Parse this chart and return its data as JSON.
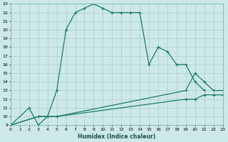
{
  "xlabel": "Humidex (Indice chaleur)",
  "bg_color": "#cde8e8",
  "grid_color": "#aacccc",
  "line_color": "#1a7a6e",
  "xlim": [
    0,
    23
  ],
  "ylim": [
    9,
    23
  ],
  "xticks": [
    0,
    1,
    2,
    3,
    4,
    5,
    6,
    7,
    8,
    9,
    10,
    11,
    12,
    13,
    14,
    15,
    16,
    17,
    18,
    19,
    20,
    21,
    22,
    23
  ],
  "yticks": [
    9,
    10,
    11,
    12,
    13,
    14,
    15,
    16,
    17,
    18,
    19,
    20,
    21,
    22,
    23
  ],
  "line1_x": [
    0,
    2,
    3,
    4,
    5,
    6,
    7,
    8,
    9,
    10,
    11,
    12,
    13,
    14,
    15,
    16,
    17,
    18,
    19,
    20,
    21
  ],
  "line1_y": [
    9,
    11,
    9,
    10,
    13,
    20,
    22,
    22.5,
    23,
    22.5,
    22,
    22,
    22,
    22,
    16,
    18,
    17.5,
    16,
    16,
    14,
    13
  ],
  "line2_x": [
    0,
    3,
    5,
    19,
    20,
    21,
    22,
    23
  ],
  "line2_y": [
    9,
    10,
    10,
    13,
    15,
    14,
    13,
    13
  ],
  "line3_x": [
    0,
    3,
    5,
    19,
    20,
    21,
    22,
    23
  ],
  "line3_y": [
    9,
    10,
    10,
    12,
    12,
    12.5,
    12.5,
    12.5
  ]
}
